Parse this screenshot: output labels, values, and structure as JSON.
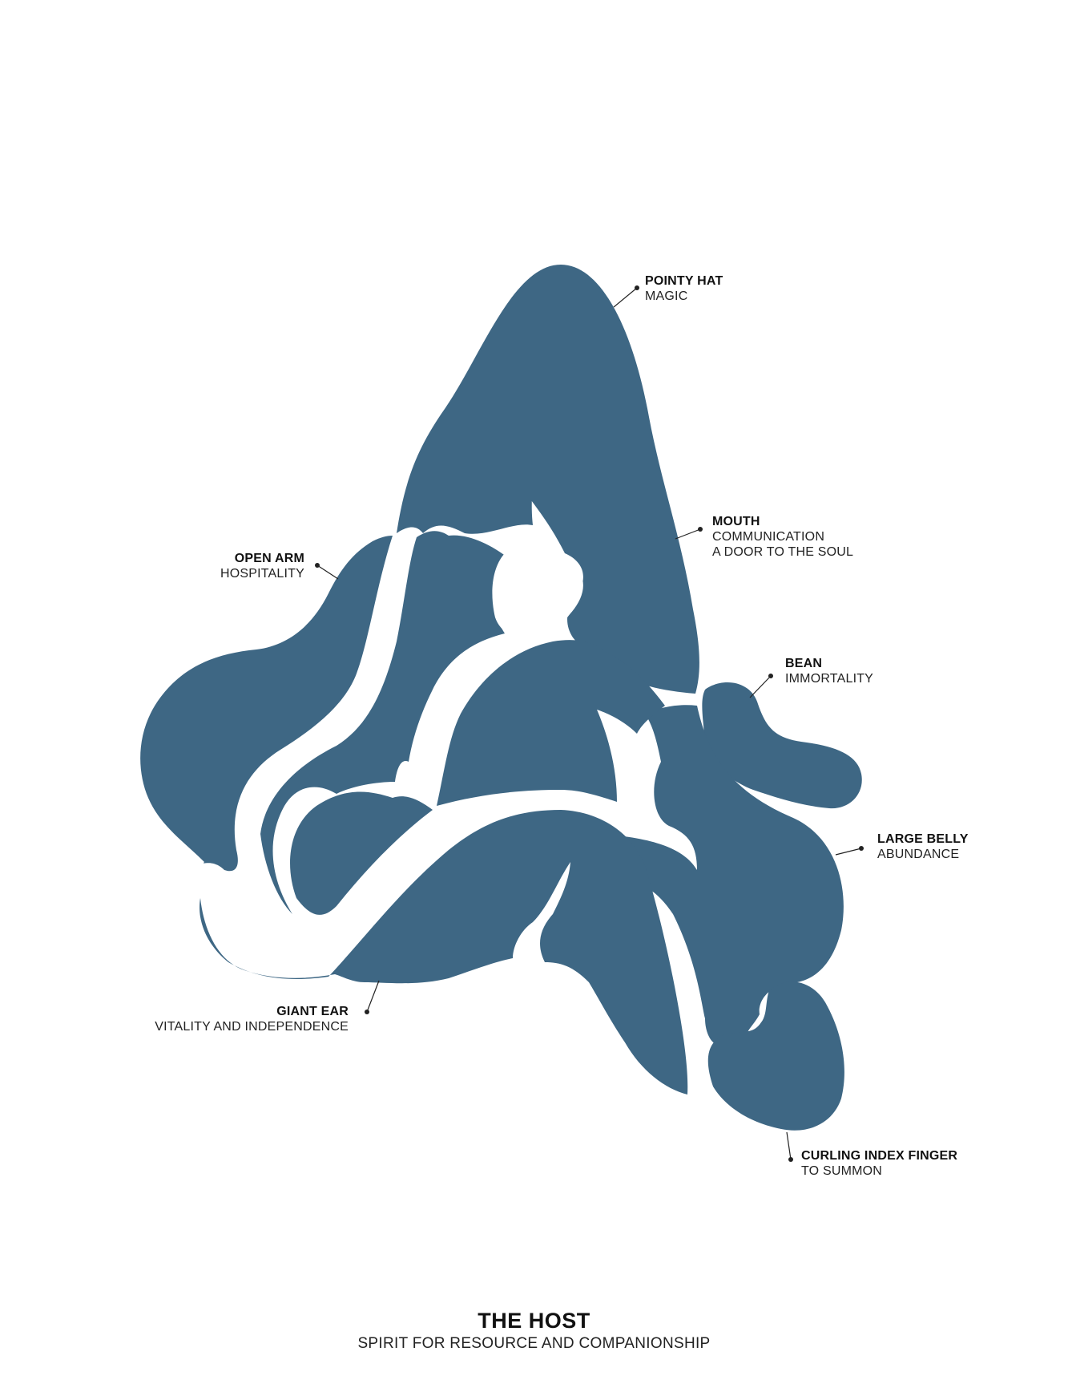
{
  "colors": {
    "figure": "#3e6784",
    "gap": "#ffffff",
    "leader": "#222222"
  },
  "callouts": {
    "pointy_hat": {
      "title": "POINTY HAT",
      "sub": "MAGIC"
    },
    "mouth": {
      "title": "MOUTH",
      "sub": "COMMUNICATION",
      "sub2": "A DOOR TO THE SOUL"
    },
    "open_arm": {
      "title": "OPEN ARM",
      "sub": "HOSPITALITY"
    },
    "bean": {
      "title": "BEAN",
      "sub": "IMMORTALITY"
    },
    "large_belly": {
      "title": "LARGE BELLY",
      "sub": "ABUNDANCE"
    },
    "giant_ear": {
      "title": "GIANT EAR",
      "sub": "VITALITY AND INDEPENDENCE"
    },
    "curling_finger": {
      "title": "CURLING INDEX FINGER",
      "sub": "TO SUMMON"
    }
  },
  "footer": {
    "title": "THE HOST",
    "subtitle": "SPIRIT FOR RESOURCE AND COMPANIONSHIP"
  }
}
